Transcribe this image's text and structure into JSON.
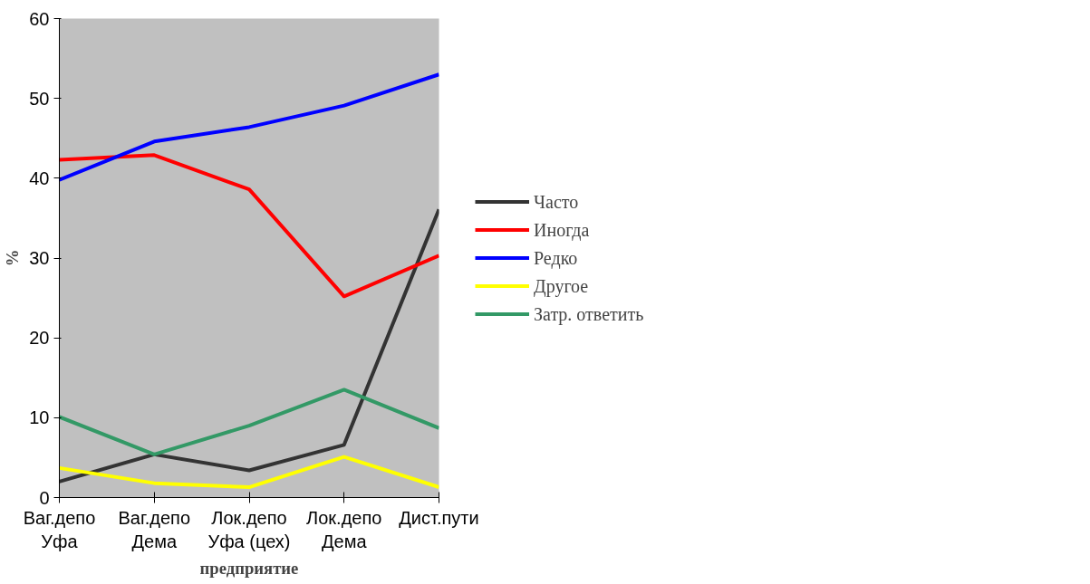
{
  "chart_data": {
    "type": "line",
    "categories": [
      "Ваг.депо\nУфа",
      "Ваг.депо\nДема",
      "Лок.депо\nУфа (цех)",
      "Лок.депо\nДема",
      "Дист.пути"
    ],
    "xlabel": "предприятие",
    "ylabel": "%",
    "ylim": [
      0,
      60
    ],
    "yticks": [
      0,
      10,
      20,
      30,
      40,
      50,
      60
    ],
    "grid": false,
    "legend": "right",
    "marker": "none",
    "line_style": "solid",
    "series": [
      {
        "name": "Часто",
        "color": "#333333",
        "values": [
          2.0,
          5.4,
          3.4,
          6.6,
          36.1
        ]
      },
      {
        "name": "Иногда",
        "color": "#ff0000",
        "values": [
          42.3,
          42.9,
          38.6,
          25.2,
          30.3
        ]
      },
      {
        "name": "Редко",
        "color": "#0000ff",
        "values": [
          39.8,
          44.6,
          46.4,
          49.1,
          53.0
        ]
      },
      {
        "name": "Другое",
        "color": "#ffff00",
        "values": [
          3.7,
          1.8,
          1.3,
          5.1,
          1.3
        ]
      },
      {
        "name": "Затр. ответить",
        "color": "#339966",
        "values": [
          10.1,
          5.4,
          9.0,
          13.5,
          8.7
        ]
      }
    ]
  }
}
